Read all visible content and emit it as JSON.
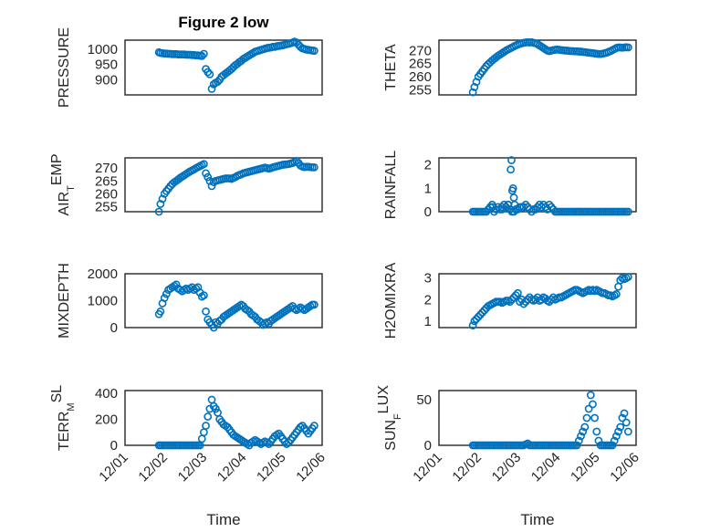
{
  "figure_title": "Figure 2 low",
  "colors": {
    "marker": "#0072bd",
    "axis": "#262626",
    "grid": "#c8c8c8"
  },
  "time_tick_labels": [
    "12/01",
    "12/02",
    "12/03",
    "12/04",
    "12/05",
    "12/06"
  ],
  "xlabel": "Time",
  "chart_data": [
    {
      "id": "pressure",
      "type": "scatter",
      "ylabel": "PRESSURE",
      "ylim": [
        850,
        1030
      ],
      "yticks": [
        900,
        950,
        1000
      ],
      "grid": true,
      "x": [
        1.86,
        1.9,
        1.95,
        2.0,
        2.05,
        2.1,
        2.15,
        2.2,
        2.25,
        2.3,
        2.35,
        2.4,
        2.45,
        2.5,
        2.55,
        2.6,
        2.65,
        2.7,
        2.75,
        2.8,
        2.85,
        2.9,
        2.95,
        3.0,
        3.05,
        3.1,
        3.15,
        3.2,
        3.25,
        3.3,
        3.35,
        3.4,
        3.45,
        3.5,
        3.55,
        3.6,
        3.65,
        3.7,
        3.75,
        3.8,
        3.85,
        3.9,
        3.95,
        4.0,
        4.05,
        4.1,
        4.15,
        4.2,
        4.25,
        4.3,
        4.35,
        4.4,
        4.45,
        4.5,
        4.55,
        4.6,
        4.65,
        4.7,
        4.75,
        4.8,
        4.85,
        4.9,
        4.95,
        5.0,
        5.05,
        5.1,
        5.15,
        5.2,
        5.25,
        5.3,
        5.35,
        5.4,
        5.45,
        5.5,
        5.55,
        5.6,
        5.65,
        5.7,
        5.75,
        5.8
      ],
      "y": [
        990,
        988,
        987,
        986,
        986,
        985,
        985,
        984,
        984,
        984,
        983,
        983,
        983,
        983,
        982,
        982,
        982,
        981,
        981,
        980,
        980,
        979,
        978,
        985,
        935,
        925,
        918,
        870,
        885,
        890,
        893,
        900,
        910,
        915,
        920,
        925,
        930,
        935,
        942,
        948,
        952,
        958,
        962,
        968,
        972,
        976,
        980,
        984,
        988,
        992,
        994,
        996,
        998,
        1000,
        1002,
        1004,
        1005,
        1006,
        1008,
        1008,
        1010,
        1011,
        1012,
        1013,
        1015,
        1017,
        1018,
        1020,
        1022,
        1025,
        1022,
        1015,
        1008,
        1003,
        1001,
        999,
        998,
        997,
        996,
        995
      ]
    },
    {
      "id": "theta",
      "type": "scatter",
      "ylabel": "THETA",
      "ylim": [
        253,
        274
      ],
      "yticks": [
        255,
        260,
        265,
        270
      ],
      "grid": true,
      "x": [
        1.86,
        1.9,
        1.95,
        2.0,
        2.05,
        2.1,
        2.15,
        2.2,
        2.25,
        2.3,
        2.35,
        2.4,
        2.45,
        2.5,
        2.55,
        2.6,
        2.65,
        2.7,
        2.75,
        2.8,
        2.85,
        2.9,
        2.95,
        3.0,
        3.05,
        3.1,
        3.15,
        3.2,
        3.25,
        3.3,
        3.35,
        3.4,
        3.45,
        3.5,
        3.55,
        3.6,
        3.65,
        3.7,
        3.75,
        3.8,
        3.85,
        3.9,
        3.95,
        4.0,
        4.05,
        4.1,
        4.15,
        4.2,
        4.25,
        4.3,
        4.35,
        4.4,
        4.45,
        4.5,
        4.55,
        4.6,
        4.65,
        4.7,
        4.75,
        4.8,
        4.85,
        4.9,
        4.95,
        5.0,
        5.05,
        5.1,
        5.15,
        5.2,
        5.25,
        5.3,
        5.35,
        5.4,
        5.45,
        5.5,
        5.55,
        5.6,
        5.65,
        5.7,
        5.75,
        5.8
      ],
      "y": [
        254,
        256,
        258,
        260,
        261,
        262,
        263,
        264,
        264.8,
        265.5,
        266.2,
        266.8,
        267.4,
        268,
        268.5,
        269,
        269.5,
        270,
        270.4,
        270.8,
        271.2,
        271.6,
        272,
        272.3,
        272.6,
        272.8,
        273,
        273.1,
        273.2,
        273.1,
        273.2,
        273,
        272.8,
        272.5,
        272,
        271.5,
        271,
        270.5,
        270,
        269.8,
        270,
        270.2,
        270.3,
        270.4,
        270.3,
        270.2,
        270.1,
        270,
        270,
        269.9,
        269.8,
        269.8,
        269.7,
        269.7,
        269.6,
        269.6,
        269.5,
        269.4,
        269.3,
        269.2,
        269.1,
        269,
        268.9,
        268.8,
        268.7,
        268.7,
        268.8,
        269,
        269.2,
        269.5,
        269.8,
        270.2,
        270.6,
        271,
        271.2,
        271.2,
        271.1,
        271.2,
        271.3,
        271.2
      ]
    },
    {
      "id": "air_temp",
      "type": "scatter",
      "ylabel_main": "AIR",
      "ylabel_sub": "T",
      "ylabel_rest": "EMP",
      "ylim": [
        253,
        274
      ],
      "yticks": [
        255,
        260,
        265,
        270
      ],
      "grid": true,
      "x": [
        1.86,
        1.9,
        1.95,
        2.0,
        2.05,
        2.1,
        2.15,
        2.2,
        2.25,
        2.3,
        2.35,
        2.4,
        2.45,
        2.5,
        2.55,
        2.6,
        2.65,
        2.7,
        2.75,
        2.8,
        2.85,
        2.9,
        2.95,
        3.0,
        3.05,
        3.1,
        3.15,
        3.2,
        3.25,
        3.3,
        3.35,
        3.4,
        3.45,
        3.5,
        3.55,
        3.6,
        3.65,
        3.7,
        3.75,
        3.8,
        3.85,
        3.9,
        3.95,
        4.0,
        4.05,
        4.1,
        4.15,
        4.2,
        4.25,
        4.3,
        4.35,
        4.4,
        4.45,
        4.5,
        4.55,
        4.6,
        4.65,
        4.7,
        4.75,
        4.8,
        4.85,
        4.9,
        4.95,
        5.0,
        5.05,
        5.1,
        5.15,
        5.2,
        5.25,
        5.3,
        5.35,
        5.4,
        5.45,
        5.5,
        5.55,
        5.6,
        5.65,
        5.7,
        5.75,
        5.8
      ],
      "y": [
        253,
        256,
        258,
        260,
        261,
        262,
        263,
        263.8,
        264.5,
        265,
        265.6,
        266.2,
        266.7,
        267.2,
        267.7,
        268.2,
        268.7,
        269.1,
        269.5,
        270,
        270.4,
        270.8,
        271.2,
        271.6,
        268,
        266.5,
        265,
        263,
        264.5,
        265,
        265.2,
        265.4,
        265.6,
        265.8,
        266,
        266,
        266,
        265.8,
        266.2,
        266.5,
        267,
        267.3,
        267.6,
        268,
        268.2,
        268.4,
        268.6,
        268.8,
        269,
        269.2,
        269.4,
        269.6,
        269.8,
        270,
        270.2,
        270,
        269.8,
        270,
        270.3,
        270.5,
        270.7,
        270.9,
        271.1,
        271.3,
        271.4,
        271.5,
        271.6,
        271.8,
        272,
        272.4,
        272.8,
        272,
        271,
        270.6,
        270.4,
        270.5,
        270.5,
        270.4,
        270.3,
        270.3
      ]
    },
    {
      "id": "rainfall",
      "type": "scatter",
      "ylabel": "RAINFALL",
      "ylim": [
        0,
        2.3
      ],
      "yticks": [
        0,
        1,
        2
      ],
      "grid": true,
      "x": [
        1.86,
        1.9,
        1.95,
        2.0,
        2.05,
        2.1,
        2.15,
        2.2,
        2.25,
        2.3,
        2.35,
        2.4,
        2.45,
        2.5,
        2.55,
        2.6,
        2.65,
        2.7,
        2.75,
        2.8,
        2.85,
        2.9,
        2.95,
        3.0,
        3.05,
        3.1,
        3.15,
        3.2,
        3.25,
        3.3,
        3.35,
        3.4,
        3.45,
        3.5,
        3.55,
        3.6,
        3.65,
        3.7,
        3.75,
        3.8,
        3.85,
        3.9,
        3.95,
        4.0,
        4.05,
        4.1,
        4.15,
        4.2,
        4.25,
        4.3,
        4.35,
        4.4,
        4.45,
        4.5,
        4.55,
        4.6,
        4.65,
        4.7,
        4.75,
        4.8,
        4.85,
        4.9,
        4.95,
        5.0,
        5.05,
        5.1,
        5.15,
        5.2,
        5.25,
        5.3,
        5.35,
        5.4,
        5.45,
        5.5,
        5.55,
        5.6,
        5.65,
        5.7,
        5.75,
        5.8,
        2.82,
        2.84,
        2.86,
        2.88,
        2.9,
        2.92,
        2.76,
        2.36,
        2.6
      ],
      "y": [
        0,
        0,
        0,
        0,
        0,
        0,
        0,
        0,
        0.1,
        0.2,
        0.3,
        0,
        0.1,
        0.2,
        0.1,
        0.2,
        0.3,
        0.2,
        0.3,
        0.1,
        0,
        0,
        0.1,
        0.1,
        0.2,
        0.2,
        0.2,
        0.3,
        0.2,
        0.1,
        0,
        0.1,
        0.1,
        0.2,
        0.3,
        0.2,
        0.3,
        0.2,
        0.1,
        0.3,
        0.2,
        0.1,
        0,
        0,
        0,
        0,
        0,
        0,
        0,
        0,
        0,
        0,
        0,
        0,
        0,
        0,
        0,
        0,
        0,
        0,
        0,
        0,
        0,
        0,
        0,
        0,
        0,
        0,
        0,
        0,
        0,
        0,
        0,
        0,
        0,
        0,
        0,
        0,
        0,
        0,
        1.8,
        2.2,
        0.9,
        1.0,
        0.6,
        0.3,
        0.3,
        0.2,
        0.1
      ]
    },
    {
      "id": "mixdepth",
      "type": "scatter",
      "ylabel": "MIXDEPTH",
      "ylim": [
        0,
        2000
      ],
      "yticks": [
        0,
        1000,
        2000
      ],
      "grid": true,
      "x": [
        1.86,
        1.9,
        1.95,
        2.0,
        2.05,
        2.1,
        2.15,
        2.2,
        2.25,
        2.3,
        2.35,
        2.4,
        2.45,
        2.5,
        2.55,
        2.6,
        2.65,
        2.7,
        2.75,
        2.8,
        2.85,
        2.9,
        2.95,
        3.0,
        3.05,
        3.1,
        3.15,
        3.2,
        3.25,
        3.3,
        3.35,
        3.4,
        3.45,
        3.5,
        3.55,
        3.6,
        3.65,
        3.7,
        3.75,
        3.8,
        3.85,
        3.9,
        3.95,
        4.0,
        4.05,
        4.1,
        4.15,
        4.2,
        4.25,
        4.3,
        4.35,
        4.4,
        4.45,
        4.5,
        4.55,
        4.6,
        4.65,
        4.7,
        4.75,
        4.8,
        4.85,
        4.9,
        4.95,
        5.0,
        5.05,
        5.1,
        5.15,
        5.2,
        5.25,
        5.3,
        5.35,
        5.4,
        5.45,
        5.5,
        5.55,
        5.6,
        5.65,
        5.7,
        5.75,
        5.8
      ],
      "y": [
        500,
        600,
        900,
        1100,
        1250,
        1400,
        1450,
        1500,
        1550,
        1600,
        1450,
        1400,
        1350,
        1400,
        1450,
        1400,
        1450,
        1500,
        1400,
        1450,
        1500,
        1300,
        1150,
        1200,
        600,
        300,
        200,
        100,
        0,
        200,
        150,
        250,
        300,
        400,
        450,
        500,
        550,
        600,
        650,
        700,
        750,
        800,
        850,
        800,
        700,
        650,
        600,
        500,
        450,
        400,
        300,
        250,
        200,
        100,
        150,
        200,
        150,
        250,
        300,
        350,
        400,
        450,
        500,
        550,
        600,
        650,
        700,
        750,
        800,
        700,
        650,
        700,
        750,
        700,
        650,
        700,
        750,
        800,
        850,
        850
      ]
    },
    {
      "id": "h2omixra",
      "type": "scatter",
      "ylabel": "H2OMIXRA",
      "ylim": [
        0.7,
        3.2
      ],
      "yticks": [
        1,
        2,
        3
      ],
      "grid": true,
      "x": [
        1.86,
        1.9,
        1.95,
        2.0,
        2.05,
        2.1,
        2.15,
        2.2,
        2.25,
        2.3,
        2.35,
        2.4,
        2.45,
        2.5,
        2.55,
        2.6,
        2.65,
        2.7,
        2.75,
        2.8,
        2.85,
        2.9,
        2.95,
        3.0,
        3.05,
        3.1,
        3.15,
        3.2,
        3.25,
        3.3,
        3.35,
        3.4,
        3.45,
        3.5,
        3.55,
        3.6,
        3.65,
        3.7,
        3.75,
        3.8,
        3.85,
        3.9,
        3.95,
        4.0,
        4.05,
        4.1,
        4.15,
        4.2,
        4.25,
        4.3,
        4.35,
        4.4,
        4.45,
        4.5,
        4.55,
        4.6,
        4.65,
        4.7,
        4.75,
        4.8,
        4.85,
        4.9,
        4.95,
        5.0,
        5.05,
        5.1,
        5.15,
        5.2,
        5.25,
        5.3,
        5.35,
        5.4,
        5.45,
        5.5,
        5.55,
        5.6,
        5.65,
        5.7,
        5.75,
        5.8
      ],
      "y": [
        0.8,
        1.0,
        1.1,
        1.2,
        1.3,
        1.4,
        1.5,
        1.6,
        1.7,
        1.75,
        1.8,
        1.85,
        1.9,
        1.9,
        1.9,
        1.85,
        1.9,
        1.95,
        1.95,
        1.9,
        2.0,
        2.1,
        2.2,
        2.3,
        1.9,
        2.0,
        1.8,
        1.9,
        2.0,
        2.1,
        2.0,
        1.95,
        2.0,
        2.1,
        1.95,
        2.0,
        2.1,
        2.05,
        1.95,
        1.9,
        2.0,
        2.1,
        2.0,
        2.05,
        2.1,
        2.1,
        2.15,
        2.2,
        2.25,
        2.3,
        2.35,
        2.4,
        2.45,
        2.45,
        2.4,
        2.35,
        2.3,
        2.35,
        2.4,
        2.45,
        2.4,
        2.45,
        2.4,
        2.45,
        2.4,
        2.35,
        2.3,
        2.3,
        2.25,
        2.2,
        2.2,
        2.15,
        2.2,
        2.25,
        2.6,
        2.9,
        3.0,
        2.95,
        3.0,
        3.05
      ]
    },
    {
      "id": "terr_msl",
      "type": "scatter",
      "ylabel_main": "TERR",
      "ylabel_sub": "M",
      "ylabel_rest": "SL",
      "ylim": [
        0,
        420
      ],
      "yticks": [
        0,
        200,
        400
      ],
      "grid": true,
      "x": [
        1.86,
        1.9,
        1.95,
        2.0,
        2.05,
        2.1,
        2.15,
        2.2,
        2.25,
        2.3,
        2.35,
        2.4,
        2.45,
        2.5,
        2.55,
        2.6,
        2.65,
        2.7,
        2.75,
        2.8,
        2.85,
        2.9,
        2.95,
        3.0,
        3.05,
        3.1,
        3.15,
        3.2,
        3.25,
        3.3,
        3.35,
        3.4,
        3.45,
        3.5,
        3.55,
        3.6,
        3.65,
        3.7,
        3.75,
        3.8,
        3.85,
        3.9,
        3.95,
        4.0,
        4.05,
        4.1,
        4.15,
        4.2,
        4.25,
        4.3,
        4.35,
        4.4,
        4.45,
        4.5,
        4.55,
        4.6,
        4.65,
        4.7,
        4.75,
        4.8,
        4.85,
        4.9,
        4.95,
        5.0,
        5.05,
        5.1,
        5.15,
        5.2,
        5.25,
        5.3,
        5.35,
        5.4,
        5.45,
        5.5,
        5.55,
        5.6,
        5.65,
        5.7,
        5.75,
        5.8
      ],
      "y": [
        0,
        0,
        0,
        0,
        0,
        0,
        0,
        0,
        0,
        0,
        0,
        0,
        0,
        0,
        0,
        0,
        0,
        0,
        0,
        0,
        0,
        0,
        50,
        100,
        150,
        220,
        280,
        350,
        300,
        280,
        250,
        200,
        180,
        160,
        150,
        140,
        120,
        100,
        80,
        70,
        60,
        50,
        40,
        30,
        20,
        10,
        0,
        20,
        30,
        40,
        30,
        20,
        10,
        20,
        30,
        20,
        10,
        30,
        50,
        70,
        80,
        90,
        70,
        50,
        30,
        10,
        20,
        40,
        60,
        80,
        100,
        120,
        140,
        150,
        130,
        110,
        90,
        110,
        130,
        150
      ]
    },
    {
      "id": "sun_flux",
      "type": "scatter",
      "ylabel_main": "SUN",
      "ylabel_sub": "F",
      "ylabel_rest": "LUX",
      "ylim": [
        0,
        60
      ],
      "yticks": [
        0,
        50
      ],
      "grid": true,
      "x": [
        1.86,
        1.9,
        1.95,
        2.0,
        2.05,
        2.1,
        2.15,
        2.2,
        2.25,
        2.3,
        2.35,
        2.4,
        2.45,
        2.5,
        2.55,
        2.6,
        2.65,
        2.7,
        2.75,
        2.8,
        2.85,
        2.9,
        2.95,
        3.0,
        3.05,
        3.1,
        3.15,
        3.2,
        3.25,
        3.3,
        3.35,
        3.4,
        3.45,
        3.5,
        3.55,
        3.6,
        3.65,
        3.7,
        3.75,
        3.8,
        3.85,
        3.9,
        3.95,
        4.0,
        4.05,
        4.1,
        4.15,
        4.2,
        4.25,
        4.3,
        4.35,
        4.4,
        4.45,
        4.5,
        4.55,
        4.6,
        4.65,
        4.7,
        4.75,
        4.8,
        4.85,
        4.9,
        4.95,
        5.0,
        5.05,
        5.1,
        5.15,
        5.2,
        5.25,
        5.3,
        5.35,
        5.4,
        5.45,
        5.5,
        5.55,
        5.6,
        5.65,
        5.7,
        5.75,
        5.8
      ],
      "y": [
        0,
        0,
        0,
        0,
        0,
        0,
        0,
        0,
        0,
        0,
        0,
        0,
        0,
        0,
        0,
        0,
        0,
        0,
        0,
        0,
        0,
        0,
        0,
        0,
        0,
        0,
        0,
        1,
        2,
        0,
        0,
        0,
        0,
        0,
        0,
        0,
        0,
        0,
        0,
        0,
        0,
        0,
        0,
        0,
        0,
        0,
        0,
        0,
        0,
        0,
        0,
        0,
        0,
        0,
        5,
        10,
        15,
        20,
        30,
        40,
        55,
        45,
        30,
        15,
        5,
        0,
        0,
        0,
        0,
        0,
        0,
        0,
        5,
        10,
        15,
        20,
        30,
        35,
        25,
        15
      ]
    }
  ]
}
